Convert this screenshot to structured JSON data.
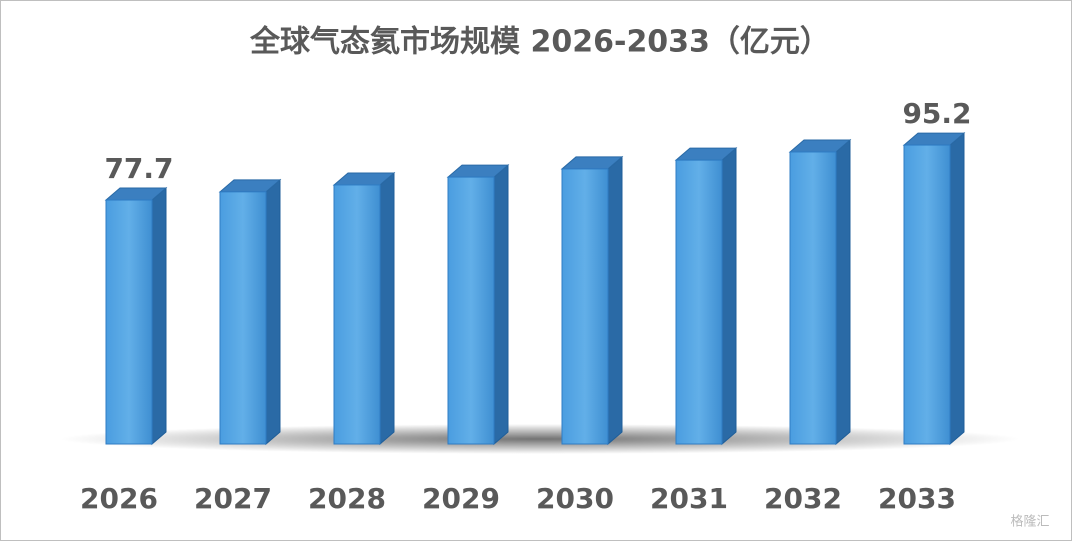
{
  "chart_data": {
    "type": "bar3d",
    "title": "全球气态氦市场规模 2026-2033（亿元）",
    "categories": [
      "2026",
      "2027",
      "2028",
      "2029",
      "2030",
      "2031",
      "2032",
      "2033"
    ],
    "values": [
      77.7,
      80.3,
      82.5,
      85.0,
      87.6,
      90.4,
      93.0,
      95.2
    ],
    "value_labels": [
      "77.7",
      null,
      null,
      null,
      null,
      null,
      null,
      "95.2"
    ],
    "color": "#4a9de0"
  },
  "watermark": "格隆汇"
}
